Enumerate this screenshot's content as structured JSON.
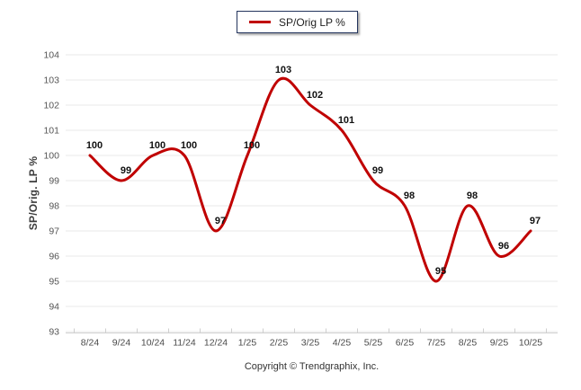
{
  "chart_data": {
    "type": "line",
    "legend_label": "SP/Orig LP %",
    "ylabel": "SP/Orig. LP %",
    "categories": [
      "8/24",
      "9/24",
      "10/24",
      "11/24",
      "12/24",
      "1/25",
      "2/25",
      "3/25",
      "4/25",
      "5/25",
      "6/25",
      "7/25",
      "8/25",
      "9/25",
      "10/25"
    ],
    "values": [
      100,
      99,
      100,
      100,
      97,
      100,
      103,
      102,
      101,
      99,
      98,
      95,
      98,
      96,
      97
    ],
    "y_ticks": [
      104,
      103,
      102,
      101,
      100,
      99,
      98,
      97,
      96,
      95,
      94,
      93
    ],
    "ylim": [
      93,
      104
    ],
    "grid": true,
    "legend_position": "top-center",
    "line_style": "smooth",
    "colors": {
      "line": "#c00000",
      "legend_border": "#24355e",
      "grid_line": "#e9e9e9",
      "axis_line": "#cfcfcf"
    }
  },
  "footer": {
    "copyright": "Copyright © Trendgraphix, Inc."
  }
}
